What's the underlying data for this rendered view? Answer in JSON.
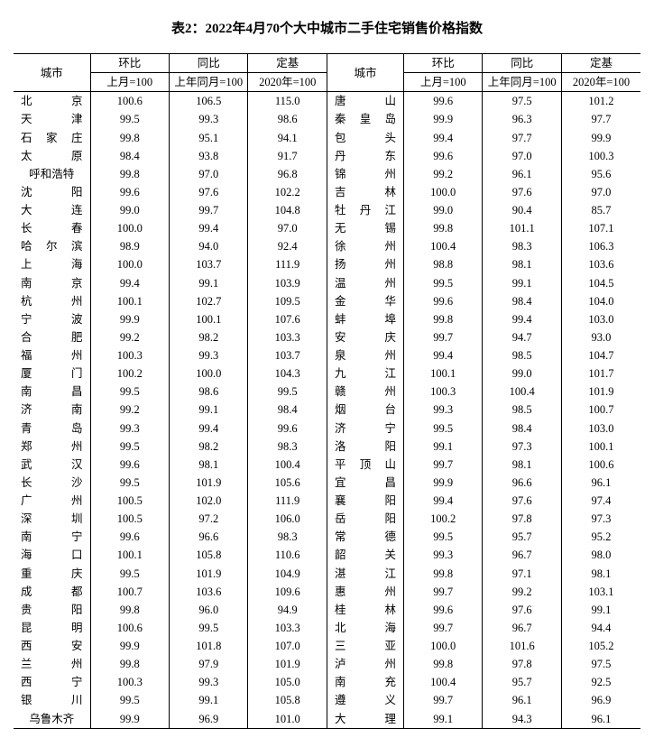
{
  "title": "表2：2022年4月70个大中城市二手住宅销售价格指数",
  "headers": {
    "city": "城市",
    "mom": "环比",
    "yoy": "同比",
    "base": "定基",
    "mom_sub": "上月=100",
    "yoy_sub": "上年同月=100",
    "base_sub": "2020年=100"
  },
  "left": [
    {
      "city": "北京",
      "mom": "100.6",
      "yoy": "106.5",
      "base": "115.0"
    },
    {
      "city": "天津",
      "mom": "99.5",
      "yoy": "99.3",
      "base": "98.6"
    },
    {
      "city": "石家庄",
      "mom": "99.8",
      "yoy": "95.1",
      "base": "94.1"
    },
    {
      "city": "太原",
      "mom": "98.4",
      "yoy": "93.8",
      "base": "91.7"
    },
    {
      "city": "呼和浩特",
      "mom": "99.8",
      "yoy": "97.0",
      "base": "96.8"
    },
    {
      "city": "沈阳",
      "mom": "99.6",
      "yoy": "97.6",
      "base": "102.2"
    },
    {
      "city": "大连",
      "mom": "99.0",
      "yoy": "99.7",
      "base": "104.8"
    },
    {
      "city": "长春",
      "mom": "100.0",
      "yoy": "99.4",
      "base": "97.0"
    },
    {
      "city": "哈尔滨",
      "mom": "98.9",
      "yoy": "94.0",
      "base": "92.4"
    },
    {
      "city": "上海",
      "mom": "100.0",
      "yoy": "103.7",
      "base": "111.9"
    },
    {
      "city": "南京",
      "mom": "99.4",
      "yoy": "99.1",
      "base": "103.9"
    },
    {
      "city": "杭州",
      "mom": "100.1",
      "yoy": "102.7",
      "base": "109.5"
    },
    {
      "city": "宁波",
      "mom": "99.9",
      "yoy": "100.1",
      "base": "107.6"
    },
    {
      "city": "合肥",
      "mom": "99.2",
      "yoy": "98.2",
      "base": "103.3"
    },
    {
      "city": "福州",
      "mom": "100.3",
      "yoy": "99.3",
      "base": "103.7"
    },
    {
      "city": "厦门",
      "mom": "100.2",
      "yoy": "100.0",
      "base": "104.3"
    },
    {
      "city": "南昌",
      "mom": "99.5",
      "yoy": "98.6",
      "base": "99.5"
    },
    {
      "city": "济南",
      "mom": "99.2",
      "yoy": "99.1",
      "base": "98.4"
    },
    {
      "city": "青岛",
      "mom": "99.3",
      "yoy": "99.4",
      "base": "99.6"
    },
    {
      "city": "郑州",
      "mom": "99.5",
      "yoy": "98.2",
      "base": "98.3"
    },
    {
      "city": "武汉",
      "mom": "99.6",
      "yoy": "98.1",
      "base": "100.4"
    },
    {
      "city": "长沙",
      "mom": "99.5",
      "yoy": "101.9",
      "base": "105.6"
    },
    {
      "city": "广州",
      "mom": "100.5",
      "yoy": "102.0",
      "base": "111.9"
    },
    {
      "city": "深圳",
      "mom": "100.5",
      "yoy": "97.2",
      "base": "106.0"
    },
    {
      "city": "南宁",
      "mom": "99.6",
      "yoy": "96.6",
      "base": "98.3"
    },
    {
      "city": "海口",
      "mom": "100.1",
      "yoy": "105.8",
      "base": "110.6"
    },
    {
      "city": "重庆",
      "mom": "99.5",
      "yoy": "101.9",
      "base": "104.9"
    },
    {
      "city": "成都",
      "mom": "100.7",
      "yoy": "103.6",
      "base": "109.6"
    },
    {
      "city": "贵阳",
      "mom": "99.8",
      "yoy": "96.0",
      "base": "94.9"
    },
    {
      "city": "昆明",
      "mom": "100.6",
      "yoy": "99.5",
      "base": "103.3"
    },
    {
      "city": "西安",
      "mom": "99.9",
      "yoy": "101.8",
      "base": "107.0"
    },
    {
      "city": "兰州",
      "mom": "99.8",
      "yoy": "97.9",
      "base": "101.9"
    },
    {
      "city": "西宁",
      "mom": "100.3",
      "yoy": "99.3",
      "base": "105.0"
    },
    {
      "city": "银川",
      "mom": "99.5",
      "yoy": "99.1",
      "base": "105.8"
    },
    {
      "city": "乌鲁木齐",
      "mom": "99.9",
      "yoy": "96.9",
      "base": "101.0"
    }
  ],
  "right": [
    {
      "city": "唐山",
      "mom": "99.6",
      "yoy": "97.5",
      "base": "101.2"
    },
    {
      "city": "秦皇岛",
      "mom": "99.9",
      "yoy": "96.3",
      "base": "97.7"
    },
    {
      "city": "包头",
      "mom": "99.4",
      "yoy": "97.7",
      "base": "99.9"
    },
    {
      "city": "丹东",
      "mom": "99.6",
      "yoy": "97.0",
      "base": "100.3"
    },
    {
      "city": "锦州",
      "mom": "99.2",
      "yoy": "96.1",
      "base": "95.6"
    },
    {
      "city": "吉林",
      "mom": "100.0",
      "yoy": "97.6",
      "base": "97.0"
    },
    {
      "city": "牡丹江",
      "mom": "99.0",
      "yoy": "90.4",
      "base": "85.7"
    },
    {
      "city": "无锡",
      "mom": "99.8",
      "yoy": "101.1",
      "base": "107.1"
    },
    {
      "city": "徐州",
      "mom": "100.4",
      "yoy": "98.3",
      "base": "106.3"
    },
    {
      "city": "扬州",
      "mom": "98.8",
      "yoy": "98.1",
      "base": "103.6"
    },
    {
      "city": "温州",
      "mom": "99.5",
      "yoy": "99.1",
      "base": "104.5"
    },
    {
      "city": "金华",
      "mom": "99.6",
      "yoy": "98.4",
      "base": "104.0"
    },
    {
      "city": "蚌埠",
      "mom": "99.8",
      "yoy": "99.4",
      "base": "103.0"
    },
    {
      "city": "安庆",
      "mom": "99.7",
      "yoy": "94.7",
      "base": "93.0"
    },
    {
      "city": "泉州",
      "mom": "99.4",
      "yoy": "98.5",
      "base": "104.7"
    },
    {
      "city": "九江",
      "mom": "100.1",
      "yoy": "99.0",
      "base": "101.7"
    },
    {
      "city": "赣州",
      "mom": "100.3",
      "yoy": "100.4",
      "base": "101.9"
    },
    {
      "city": "烟台",
      "mom": "99.3",
      "yoy": "98.5",
      "base": "100.7"
    },
    {
      "city": "济宁",
      "mom": "99.5",
      "yoy": "98.4",
      "base": "103.0"
    },
    {
      "city": "洛阳",
      "mom": "99.1",
      "yoy": "97.3",
      "base": "100.1"
    },
    {
      "city": "平顶山",
      "mom": "99.7",
      "yoy": "98.1",
      "base": "100.6"
    },
    {
      "city": "宜昌",
      "mom": "99.9",
      "yoy": "96.6",
      "base": "96.1"
    },
    {
      "city": "襄阳",
      "mom": "99.4",
      "yoy": "97.6",
      "base": "97.4"
    },
    {
      "city": "岳阳",
      "mom": "100.2",
      "yoy": "97.8",
      "base": "97.3"
    },
    {
      "city": "常德",
      "mom": "99.5",
      "yoy": "95.7",
      "base": "95.2"
    },
    {
      "city": "韶关",
      "mom": "99.3",
      "yoy": "96.7",
      "base": "98.0"
    },
    {
      "city": "湛江",
      "mom": "99.8",
      "yoy": "97.1",
      "base": "98.1"
    },
    {
      "city": "惠州",
      "mom": "99.7",
      "yoy": "99.2",
      "base": "103.1"
    },
    {
      "city": "桂林",
      "mom": "99.6",
      "yoy": "97.6",
      "base": "99.1"
    },
    {
      "city": "北海",
      "mom": "99.7",
      "yoy": "96.7",
      "base": "94.4"
    },
    {
      "city": "三亚",
      "mom": "100.0",
      "yoy": "101.6",
      "base": "105.2"
    },
    {
      "city": "泸州",
      "mom": "99.8",
      "yoy": "97.8",
      "base": "97.5"
    },
    {
      "city": "南充",
      "mom": "100.4",
      "yoy": "95.7",
      "base": "92.5"
    },
    {
      "city": "遵义",
      "mom": "99.7",
      "yoy": "96.1",
      "base": "96.9"
    },
    {
      "city": "大理",
      "mom": "99.1",
      "yoy": "94.3",
      "base": "96.1"
    }
  ]
}
